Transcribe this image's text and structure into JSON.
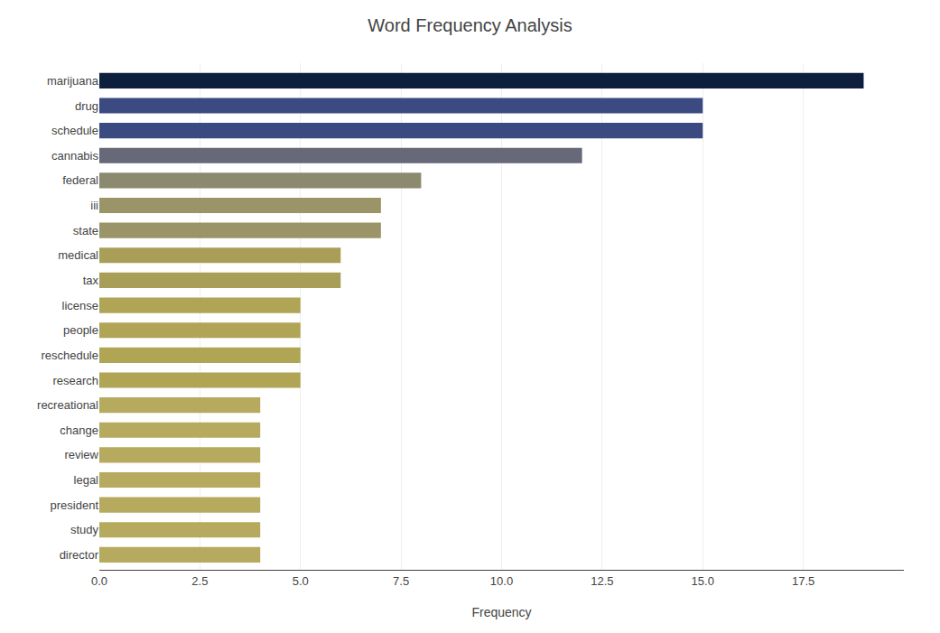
{
  "chart_data": {
    "type": "bar",
    "orientation": "horizontal",
    "title": "Word Frequency Analysis",
    "xlabel": "Frequency",
    "categories": [
      "director",
      "study",
      "president",
      "legal",
      "review",
      "change",
      "recreational",
      "research",
      "reschedule",
      "people",
      "license",
      "tax",
      "medical",
      "state",
      "iii",
      "federal",
      "cannabis",
      "schedule",
      "drug",
      "marijuana"
    ],
    "values": [
      4,
      4,
      4,
      4,
      4,
      4,
      4,
      5,
      5,
      5,
      5,
      6,
      6,
      7,
      7,
      8,
      12,
      15,
      15,
      19
    ],
    "colors": [
      "#b5aa5e",
      "#b5aa5e",
      "#b5aa5e",
      "#b5aa5e",
      "#b5aa5e",
      "#b5aa5e",
      "#b5aa5e",
      "#b0a455",
      "#b0a455",
      "#b0a455",
      "#b0a455",
      "#a89e58",
      "#a89e58",
      "#9a9468",
      "#9a9468",
      "#8c8a6e",
      "#676878",
      "#3b4b82",
      "#3b4b82",
      "#0e1e3d"
    ],
    "xlim": [
      0,
      20
    ],
    "xticks": [
      {
        "value": 0,
        "label": "0.0"
      },
      2.5,
      {
        "value": 5,
        "label": "5.0"
      },
      7.5,
      {
        "value": 10,
        "label": "10.0"
      },
      12.5,
      {
        "value": 15,
        "label": "15.0"
      },
      17.5
    ],
    "grid": true
  }
}
